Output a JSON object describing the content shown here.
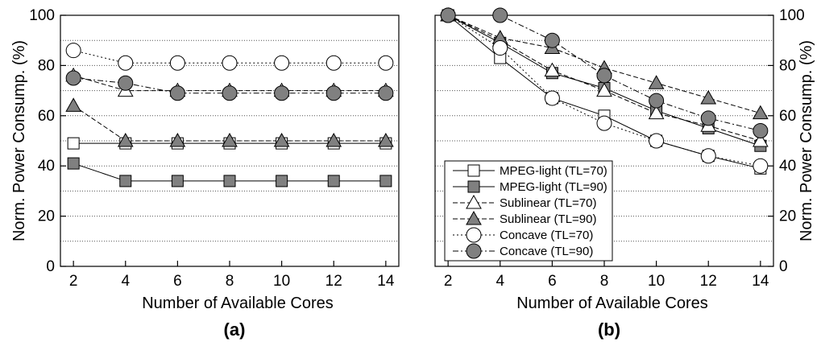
{
  "chart_data": [
    {
      "type": "line",
      "panel_label": "(a)",
      "xlabel": "Number of Available Cores",
      "ylabel": "Norm. Power Consump. (%)",
      "ylabel_side": "left",
      "x": [
        2,
        4,
        6,
        8,
        10,
        12,
        14
      ],
      "xticks": [
        "2",
        "4",
        "6",
        "8",
        "10",
        "12",
        "14"
      ],
      "yticks": [
        "0",
        "20",
        "40",
        "60",
        "80",
        "100"
      ],
      "xlim": [
        1.5,
        14.5
      ],
      "ylim": [
        0,
        100
      ],
      "grid": "horizontal dotted every 10",
      "series": [
        {
          "name": "MPEG-light (TL=70)",
          "marker": "square",
          "fill": "#ffffff",
          "dash": "solid",
          "values": [
            49,
            49,
            49,
            49,
            49,
            49,
            49
          ]
        },
        {
          "name": "MPEG-light (TL=90)",
          "marker": "square",
          "fill": "#808080",
          "dash": "solid",
          "values": [
            41,
            34,
            34,
            34,
            34,
            34,
            34
          ]
        },
        {
          "name": "Sublinear (TL=70)",
          "marker": "triangle",
          "fill": "#ffffff",
          "dash": "dashed",
          "values": [
            76,
            70,
            70,
            70,
            70,
            70,
            70
          ]
        },
        {
          "name": "Sublinear (TL=90)",
          "marker": "triangle",
          "fill": "#808080",
          "dash": "dashed",
          "values": [
            64,
            50,
            50,
            50,
            50,
            50,
            50
          ]
        },
        {
          "name": "Concave (TL=70)",
          "marker": "circle",
          "fill": "#ffffff",
          "dash": "dotted",
          "values": [
            86,
            81,
            81,
            81,
            81,
            81,
            81
          ]
        },
        {
          "name": "Concave (TL=90)",
          "marker": "circle",
          "fill": "#808080",
          "dash": "dashdot",
          "values": [
            75,
            73,
            69,
            69,
            69,
            69,
            69
          ]
        }
      ]
    },
    {
      "type": "line",
      "panel_label": "(b)",
      "xlabel": "Number of Available Cores",
      "ylabel": "Norm. Power Consump. (%)",
      "ylabel_side": "right",
      "x": [
        2,
        4,
        6,
        8,
        10,
        12,
        14
      ],
      "xticks": [
        "2",
        "4",
        "6",
        "8",
        "10",
        "12",
        "14"
      ],
      "yticks": [
        "0",
        "20",
        "40",
        "60",
        "80",
        "100"
      ],
      "xlim": [
        1.5,
        14.5
      ],
      "ylim": [
        0,
        100
      ],
      "grid": "horizontal dotted every 10",
      "legend": "lower-left",
      "series": [
        {
          "name": "MPEG-light (TL=70)",
          "marker": "square",
          "fill": "#ffffff",
          "dash": "solid",
          "values": [
            100,
            83,
            67,
            60,
            50,
            44,
            39
          ]
        },
        {
          "name": "MPEG-light (TL=90)",
          "marker": "square",
          "fill": "#808080",
          "dash": "solid",
          "values": [
            100,
            89,
            77,
            71,
            62,
            55,
            48
          ]
        },
        {
          "name": "Sublinear (TL=70)",
          "marker": "triangle",
          "fill": "#ffffff",
          "dash": "dashed",
          "values": [
            100,
            90,
            78,
            70,
            61,
            56,
            50
          ]
        },
        {
          "name": "Sublinear (TL=90)",
          "marker": "triangle",
          "fill": "#808080",
          "dash": "dashed",
          "values": [
            100,
            91,
            87,
            79,
            73,
            67,
            61
          ]
        },
        {
          "name": "Concave (TL=70)",
          "marker": "circle",
          "fill": "#ffffff",
          "dash": "dotted",
          "values": [
            100,
            87,
            67,
            57,
            50,
            44,
            40
          ]
        },
        {
          "name": "Concave (TL=90)",
          "marker": "circle",
          "fill": "#808080",
          "dash": "dashdot",
          "values": [
            100,
            100,
            90,
            76,
            66,
            59,
            54
          ]
        }
      ]
    }
  ]
}
